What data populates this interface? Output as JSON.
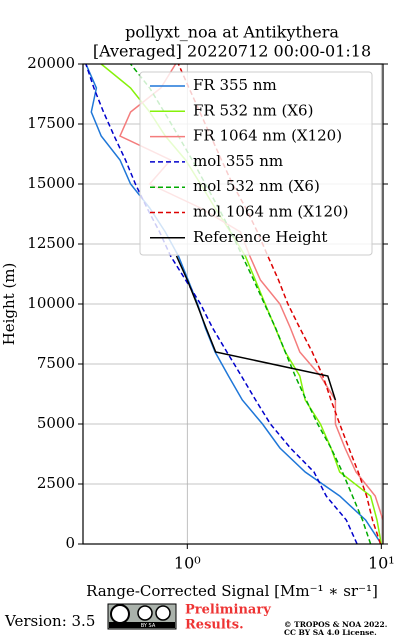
{
  "chart_data": {
    "type": "line",
    "title": "pollyxt_noa at Antikythera",
    "subtitle": "[Averaged] 20220712 00:00-01:18",
    "x_label": "Range-Corrected Signal [Mm⁻¹ ∗ sr⁻¹]",
    "y_label": "Height (m)",
    "x_scale": "log",
    "grid": true,
    "legend": "upper right",
    "xlim": [
      0.29,
      10.2
    ],
    "ylim": [
      0,
      20000
    ],
    "xticks": [
      {
        "value": 1,
        "label": "10⁰"
      },
      {
        "value": 10,
        "label": "10¹"
      }
    ],
    "yticks": [
      0,
      2500,
      5000,
      7500,
      10000,
      12500,
      15000,
      17500,
      20000
    ],
    "y": [
      0,
      1000,
      2000,
      3000,
      4000,
      5000,
      6000,
      7000,
      8000,
      9000,
      10000,
      11000,
      12000,
      13000,
      14000,
      15000,
      16000,
      17000,
      18000,
      19000,
      20000
    ],
    "series": [
      {
        "name": "FR 355 nm",
        "color": "#1f77d8",
        "linestyle": "solid",
        "values": [
          10.0,
          8.3,
          6.1,
          4.05,
          3.0,
          2.44,
          1.92,
          1.63,
          1.39,
          1.24,
          1.13,
          1.01,
          0.9,
          0.77,
          0.64,
          0.51,
          0.45,
          0.36,
          0.32,
          0.34,
          0.3
        ]
      },
      {
        "name": "FR 532 nm (X6)",
        "color": "#86f20a",
        "linestyle": "solid",
        "values": [
          10.0,
          9.5,
          8.8,
          6.1,
          5.5,
          4.85,
          4.05,
          3.8,
          3.2,
          2.84,
          2.52,
          2.24,
          1.99,
          1.67,
          1.39,
          1.17,
          0.98,
          0.77,
          0.64,
          0.51,
          0.36
        ]
      },
      {
        "name": "FR 1064 nm (X120)",
        "color": "#f47c7c",
        "linestyle": "solid",
        "values": [
          10.2,
          10.2,
          9.3,
          7.4,
          6.5,
          5.8,
          5.8,
          4.85,
          3.8,
          3.4,
          3.0,
          2.38,
          2.1,
          1.88,
          1.17,
          0.64,
          0.82,
          0.45,
          0.51,
          0.73,
          0.87
        ]
      },
      {
        "name": "mol 355 nm",
        "color": "#0000cc",
        "linestyle": "dashed",
        "values": [
          7.5,
          6.6,
          5.2,
          4.5,
          3.4,
          2.68,
          2.25,
          1.9,
          1.6,
          1.35,
          1.17,
          0.98,
          0.82,
          0.72,
          0.62,
          0.54,
          0.48,
          0.42,
          0.37,
          0.33,
          0.3
        ]
      },
      {
        "name": "mol 532 nm (X6)",
        "color": "#00aa00",
        "linestyle": "dashed",
        "values": [
          8.8,
          8.0,
          7.1,
          6.3,
          5.5,
          4.7,
          4.1,
          3.6,
          3.2,
          2.85,
          2.5,
          2.2,
          1.92,
          1.68,
          1.45,
          1.24,
          1.06,
          0.9,
          0.76,
          0.64,
          0.51
        ]
      },
      {
        "name": "mol 1064 nm (X120)",
        "color": "#dd0000",
        "linestyle": "dashed",
        "values": [
          9.9,
          9.0,
          8.4,
          7.6,
          6.8,
          6.1,
          5.5,
          5.0,
          4.4,
          3.8,
          3.3,
          2.95,
          2.6,
          2.3,
          2.0,
          1.71,
          1.5,
          1.32,
          1.16,
          1.02,
          0.9
        ]
      },
      {
        "name": "Reference Height",
        "color": "#000000",
        "linestyle": "solid",
        "values": [
          null,
          null,
          null,
          null,
          null,
          null,
          5.8,
          5.3,
          1.4,
          1.25,
          1.12,
          1.0,
          0.88,
          null,
          null,
          null,
          null,
          null,
          null,
          null,
          null
        ]
      }
    ]
  },
  "footer": {
    "version": "Version: 3.5",
    "badge": "BY SA",
    "notice": [
      "Preliminary",
      "Results."
    ],
    "copyright": [
      "© TROPOS & NOA 2022.",
      "CC BY SA 4.0 License."
    ]
  }
}
